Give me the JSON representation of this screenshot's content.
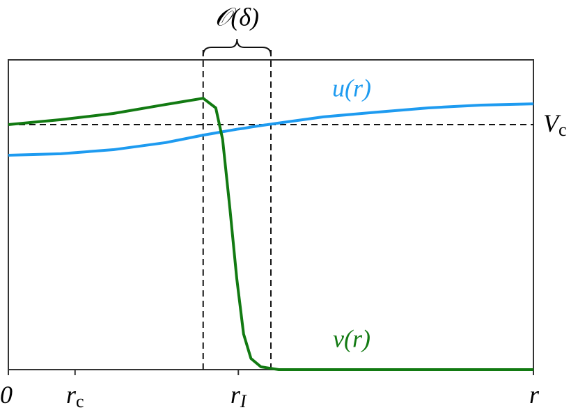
{
  "chart_data": {
    "type": "line",
    "x": [
      0,
      0.1,
      0.2,
      0.3,
      0.371,
      0.395,
      0.408,
      0.422,
      0.435,
      0.448,
      0.462,
      0.481,
      0.515,
      0.6,
      0.7,
      0.8,
      0.9,
      1.0
    ],
    "series": [
      {
        "name": "u(r)",
        "color": "#1e9bf0",
        "values": [
          0.692,
          0.697,
          0.71,
          0.733,
          0.757,
          0.764,
          0.768,
          0.772,
          0.776,
          0.779,
          0.783,
          0.788,
          0.796,
          0.816,
          0.831,
          0.845,
          0.854,
          0.858
        ]
      },
      {
        "name": "v(r)",
        "color": "#127a12",
        "values": [
          0.791,
          0.807,
          0.827,
          0.856,
          0.876,
          0.845,
          0.744,
          0.519,
          0.294,
          0.115,
          0.036,
          0.009,
          0,
          0,
          0,
          0,
          0,
          0
        ]
      }
    ],
    "xlim": [
      0,
      1
    ],
    "ylim": [
      0,
      1
    ],
    "xticks": [
      {
        "value": 0,
        "label": "0"
      },
      {
        "value": 0.127,
        "label": "rc"
      },
      {
        "value": 0.438,
        "label": "rI"
      },
      {
        "value": 1,
        "label": "r"
      }
    ],
    "hline": {
      "value": 0.791,
      "label": "Vc"
    },
    "vlines": [
      0.371,
      0.5
    ],
    "span_label": "𝒪(δ)"
  }
}
